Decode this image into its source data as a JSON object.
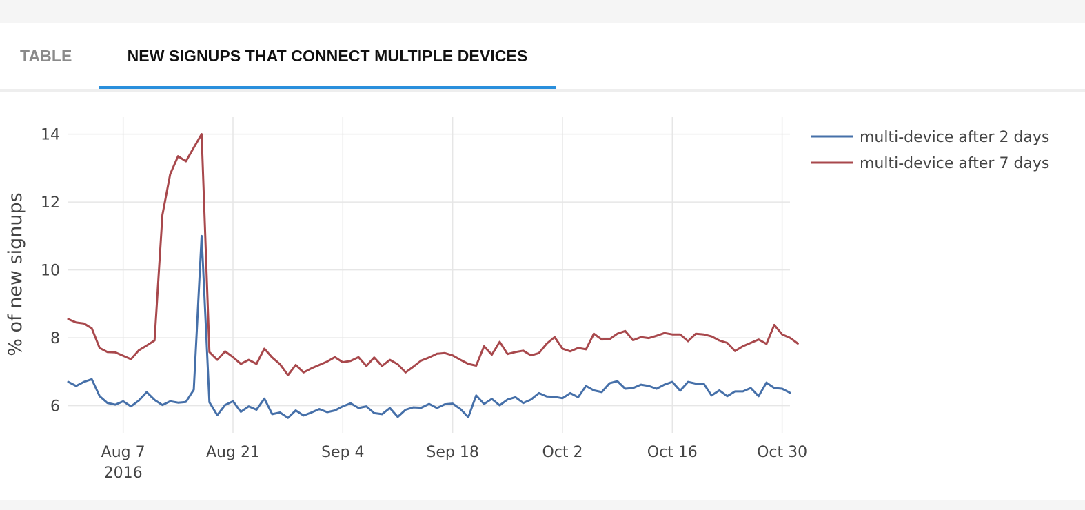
{
  "tabs": [
    {
      "label": "TABLE",
      "active": false
    },
    {
      "label": "NEW SIGNUPS THAT CONNECT MULTIPLE DEVICES",
      "active": true
    }
  ],
  "colors": {
    "accent": "#2a8fdc",
    "series_2day": "#4670a9",
    "series_7day": "#a8484c",
    "grid": "#e6e6e6"
  },
  "chart_data": {
    "type": "line",
    "ylabel": "% of new signups",
    "xlabel": "",
    "ylim": [
      5.2,
      14.5
    ],
    "yticks": [
      6,
      8,
      10,
      12,
      14
    ],
    "xlim": [
      "2016-07-31",
      "2016-10-31"
    ],
    "xticks": [
      {
        "date": "2016-08-07",
        "label": "Aug 7",
        "sublabel": "2016"
      },
      {
        "date": "2016-08-21",
        "label": "Aug 21"
      },
      {
        "date": "2016-09-04",
        "label": "Sep 4"
      },
      {
        "date": "2016-09-18",
        "label": "Sep 18"
      },
      {
        "date": "2016-10-02",
        "label": "Oct 2"
      },
      {
        "date": "2016-10-16",
        "label": "Oct 16"
      },
      {
        "date": "2016-10-30",
        "label": "Oct 30"
      }
    ],
    "grid": true,
    "legend_position": "top-right",
    "start_date": "2016-07-31",
    "series": [
      {
        "name": "multi-device after 2 days",
        "color": "#4670a9",
        "values": [
          6.7,
          6.58,
          6.7,
          6.78,
          6.28,
          6.08,
          6.03,
          6.13,
          5.98,
          6.15,
          6.4,
          6.17,
          6.02,
          6.13,
          6.09,
          6.11,
          6.47,
          11.0,
          6.1,
          5.72,
          6.02,
          6.13,
          5.82,
          5.98,
          5.88,
          6.21,
          5.75,
          5.8,
          5.64,
          5.86,
          5.71,
          5.8,
          5.9,
          5.81,
          5.86,
          5.98,
          6.07,
          5.93,
          5.98,
          5.78,
          5.75,
          5.93,
          5.67,
          5.88,
          5.95,
          5.94,
          6.05,
          5.93,
          6.04,
          6.06,
          5.9,
          5.66,
          6.3,
          6.05,
          6.2,
          6.01,
          6.18,
          6.25,
          6.08,
          6.18,
          6.37,
          6.27,
          6.26,
          6.22,
          6.37,
          6.25,
          6.58,
          6.45,
          6.4,
          6.66,
          6.72,
          6.5,
          6.52,
          6.62,
          6.58,
          6.5,
          6.62,
          6.7,
          6.44,
          6.7,
          6.65,
          6.65,
          6.3,
          6.45,
          6.28,
          6.42,
          6.42,
          6.52,
          6.28,
          6.68,
          6.52,
          6.5,
          6.38
        ]
      },
      {
        "name": "multi-device after 7 days",
        "color": "#a8484c",
        "values": [
          8.55,
          8.45,
          8.42,
          8.28,
          7.7,
          7.58,
          7.57,
          7.47,
          7.37,
          7.63,
          7.77,
          7.92,
          11.62,
          12.82,
          13.35,
          13.2,
          13.6,
          14.0,
          7.58,
          7.35,
          7.6,
          7.43,
          7.23,
          7.35,
          7.23,
          7.68,
          7.42,
          7.22,
          6.9,
          7.2,
          6.98,
          7.1,
          7.2,
          7.3,
          7.43,
          7.28,
          7.32,
          7.43,
          7.17,
          7.42,
          7.17,
          7.35,
          7.22,
          6.98,
          7.15,
          7.33,
          7.42,
          7.53,
          7.55,
          7.48,
          7.35,
          7.23,
          7.18,
          7.75,
          7.5,
          7.88,
          7.52,
          7.58,
          7.62,
          7.48,
          7.55,
          7.83,
          8.02,
          7.68,
          7.6,
          7.7,
          7.66,
          8.12,
          7.95,
          7.96,
          8.12,
          8.2,
          7.93,
          8.02,
          7.99,
          8.06,
          8.14,
          8.1,
          8.1,
          7.9,
          8.12,
          8.1,
          8.04,
          7.92,
          7.85,
          7.61,
          7.75,
          7.85,
          7.95,
          7.82,
          8.38,
          8.1,
          8.0,
          7.83
        ]
      }
    ]
  }
}
